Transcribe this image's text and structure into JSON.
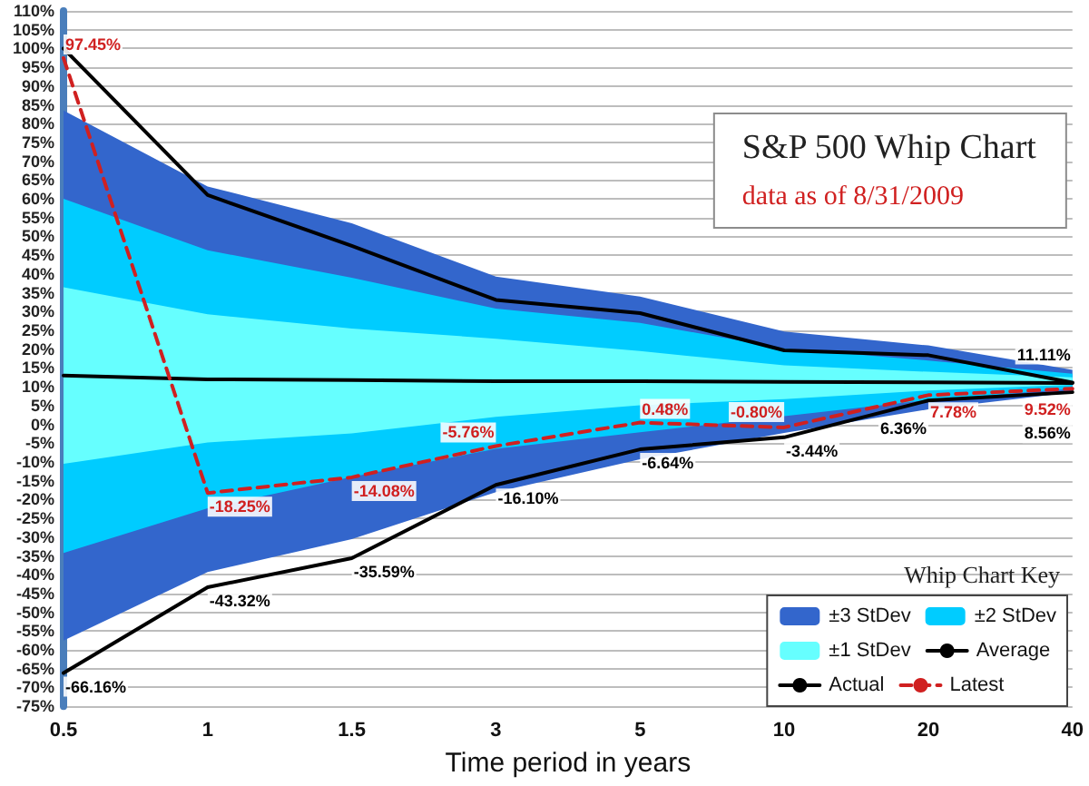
{
  "chart_data": {
    "type": "line",
    "title": "S&P 500 Whip Chart",
    "subtitle": "data as of 8/31/2009",
    "xlabel": "Time period in years",
    "legend_title": "Whip Chart Key",
    "categories": [
      "0.5",
      "1",
      "1.5",
      "3",
      "5",
      "10",
      "20",
      "40"
    ],
    "series": [
      {
        "name": "±3 StDev",
        "type": "area",
        "color": "#3366cc",
        "values": [
          null,
          null,
          null,
          null,
          null,
          null,
          null,
          null
        ],
        "upper": [
          83.5,
          63.3,
          53.5,
          39.3,
          34,
          24.7,
          21,
          14.5
        ],
        "lower": [
          -57.5,
          -39.3,
          -30.5,
          -18,
          -9.3,
          -2.3,
          4,
          8.5
        ]
      },
      {
        "name": "±2 StDev",
        "type": "area",
        "color": "#00ccff",
        "values": [
          null,
          null,
          null,
          null,
          null,
          null,
          null,
          null
        ],
        "upper": [
          60,
          46.3,
          39,
          30.8,
          27,
          20.2,
          17,
          13.5
        ],
        "lower": [
          -34.2,
          -22.3,
          -14,
          -6.5,
          -2.1,
          2.2,
          6.5,
          9.5
        ]
      },
      {
        "name": "±1 StDev",
        "type": "area",
        "color": "#66ffff",
        "values": [
          null,
          null,
          null,
          null,
          null,
          null,
          null,
          null
        ],
        "upper": [
          36.5,
          29.3,
          25.5,
          22.8,
          19.5,
          15.7,
          14,
          12.5
        ],
        "lower": [
          -10.5,
          -4.8,
          -2.4,
          2,
          5.1,
          6.7,
          9,
          10.5
        ]
      },
      {
        "name": "Average",
        "color": "#000000",
        "values": [
          13,
          12,
          11.8,
          11.5,
          11.5,
          11.3,
          11.2,
          11
        ]
      },
      {
        "color": "#000000",
        "values": [
          100,
          61,
          47.5,
          33.1,
          29.6,
          19.7,
          18.4,
          11.11
        ],
        "value_labels": [
          null,
          null,
          null,
          null,
          null,
          null,
          null,
          "11.11%"
        ]
      },
      {
        "name": "Actual",
        "color": "#000000",
        "values": [
          -66.16,
          -43.32,
          -35.59,
          -16.1,
          -6.64,
          -3.44,
          6.36,
          8.56
        ],
        "value_labels": [
          "-66.16%",
          "-43.32%",
          "-35.59%",
          "-16.10%",
          "-6.64%",
          "-3.44%",
          "6.36%",
          "8.56%"
        ]
      },
      {
        "name": "Latest",
        "color": "#d02020",
        "line_style": "dashed",
        "values": [
          97.45,
          -18.25,
          -14.08,
          -5.76,
          0.48,
          -0.8,
          7.78,
          9.52
        ],
        "value_labels": [
          "97.45%",
          "-18.25%",
          "-14.08%",
          "-5.76%",
          "0.48%",
          "-0.80%",
          "7.78%",
          "9.52%"
        ]
      }
    ],
    "ylim": [
      -75,
      110
    ],
    "yticks": [
      {
        "value": -75,
        "label": "-75%"
      },
      {
        "value": -70,
        "label": "-70%"
      },
      {
        "value": -65,
        "label": "-65%"
      },
      {
        "value": -60,
        "label": "-60%"
      },
      {
        "value": -55,
        "label": "-55%"
      },
      {
        "value": -50,
        "label": "-50%"
      },
      {
        "value": -45,
        "label": "-45%"
      },
      {
        "value": -40,
        "label": "-40%"
      },
      {
        "value": -35,
        "label": "-35%"
      },
      {
        "value": -30,
        "label": "-30%"
      },
      {
        "value": -25,
        "label": "-25%"
      },
      {
        "value": -20,
        "label": "-20%"
      },
      {
        "value": -15,
        "label": "-15%"
      },
      {
        "value": -10,
        "label": "-10%"
      },
      {
        "value": -5,
        "label": "-5%"
      },
      {
        "value": 0,
        "label": "0%"
      },
      {
        "value": 5,
        "label": "5%"
      },
      {
        "value": 10,
        "label": "10%"
      },
      {
        "value": 15,
        "label": "15%"
      },
      {
        "value": 20,
        "label": "20%"
      },
      {
        "value": 25,
        "label": "25%"
      },
      {
        "value": 30,
        "label": "30%"
      },
      {
        "value": 35,
        "label": "35%"
      },
      {
        "value": 40,
        "label": "40%"
      },
      {
        "value": 45,
        "label": "45%"
      },
      {
        "value": 50,
        "label": "50%"
      },
      {
        "value": 55,
        "label": "55%"
      },
      {
        "value": 60,
        "label": "60%"
      },
      {
        "value": 65,
        "label": "65%"
      },
      {
        "value": 70,
        "label": "70%"
      },
      {
        "value": 75,
        "label": "75%"
      },
      {
        "value": 80,
        "label": "80%"
      },
      {
        "value": 85,
        "label": "85%"
      },
      {
        "value": 90,
        "label": "90%"
      },
      {
        "value": 95,
        "label": "95%"
      },
      {
        "value": 100,
        "label": "100%"
      },
      {
        "value": 105,
        "label": "105%"
      },
      {
        "value": 110,
        "label": "110%"
      }
    ],
    "grid": "y",
    "legend": "bottom right",
    "marker": "none"
  }
}
